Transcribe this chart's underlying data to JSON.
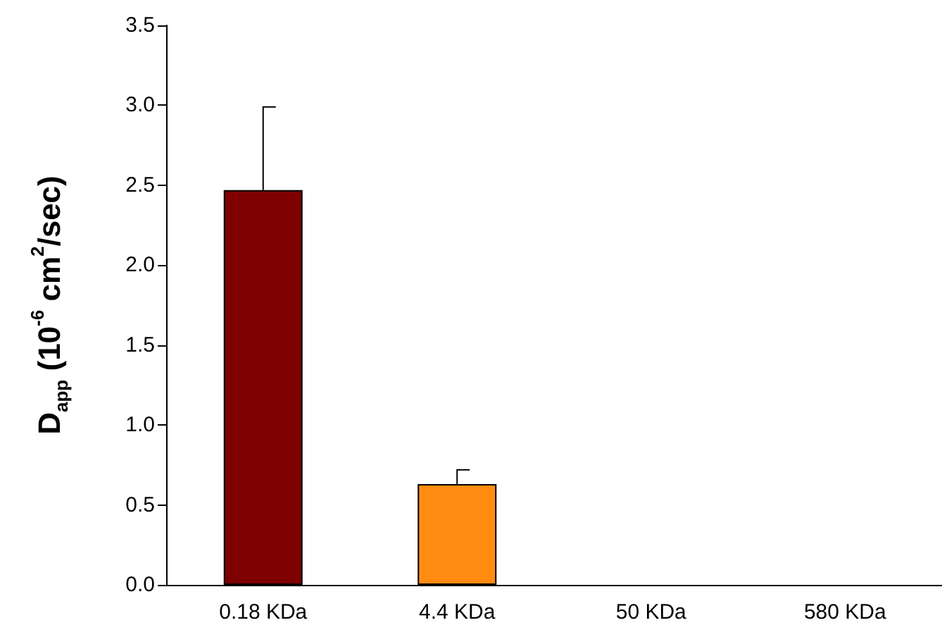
{
  "chart_data": {
    "type": "bar",
    "ylabel": "D$_{app}$ (10$^{-6}$ cm$^{2}$/sec)",
    "categories": [
      "0.18 KDa",
      "4.4 KDa",
      "50 KDa",
      "580 KDa"
    ],
    "values": [
      2.47,
      0.63,
      null,
      null
    ],
    "colors": [
      "#7f0000",
      "#ff8c10",
      null,
      null
    ],
    "errors": [
      [
        2.47,
        2.99
      ],
      [
        0.63,
        0.72
      ],
      null,
      null
    ],
    "ylim": [
      0,
      3.5
    ],
    "yticks": [
      {
        "value": 0,
        "label": "0.0"
      },
      {
        "value": 0.5,
        "label": "0.5"
      },
      {
        "value": 1,
        "label": "1.0"
      },
      {
        "value": 1.5,
        "label": "1.5"
      },
      {
        "value": 2,
        "label": "2.0"
      },
      {
        "value": 2.5,
        "label": "2.5"
      },
      {
        "value": 3,
        "label": "3.0"
      },
      {
        "value": 3.5,
        "label": "3.5"
      }
    ],
    "grid": false
  }
}
